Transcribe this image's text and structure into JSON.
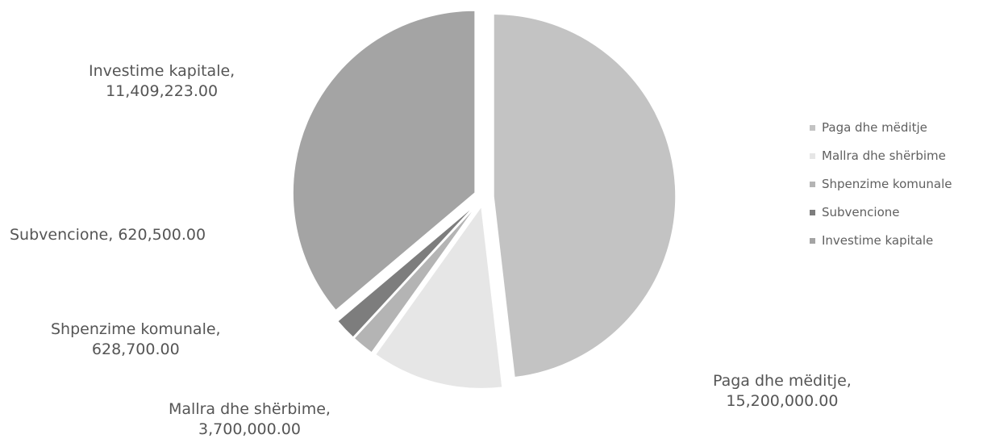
{
  "chart_data": {
    "type": "pie",
    "title": "",
    "legend_position": "right",
    "categories": [
      "Paga dhe mëditje",
      "Mallra dhe shërbime",
      "Shpenzime komunale",
      "Subvencione",
      "Investime kapitale"
    ],
    "values": [
      15200000.0,
      3700000.0,
      628700.0,
      620500.0,
      11409223.0
    ],
    "slices": [
      {
        "name": "Paga dhe mëditje",
        "value": 15200000.0,
        "label_name": "Paga dhe mëditje,",
        "label_value": "15,200,000.00",
        "color": "#c3c3c3"
      },
      {
        "name": "Mallra dhe shërbime",
        "value": 3700000.0,
        "label_name": "Mallra dhe shërbime,",
        "label_value": "3,700,000.00",
        "color": "#e6e6e6"
      },
      {
        "name": "Shpenzime komunale",
        "value": 628700.0,
        "label_name": "Shpenzime komunale,",
        "label_value": "628,700.00",
        "color": "#b4b4b4"
      },
      {
        "name": "Subvencione",
        "value": 620500.0,
        "label_name": "Subvencione,",
        "label_value": "620,500.00",
        "color": "#7d7d7d"
      },
      {
        "name": "Investime kapitale",
        "value": 11409223.0,
        "label_name": "Investime kapitale,",
        "label_value": "11,409,223.00",
        "color": "#a4a4a4"
      }
    ]
  }
}
